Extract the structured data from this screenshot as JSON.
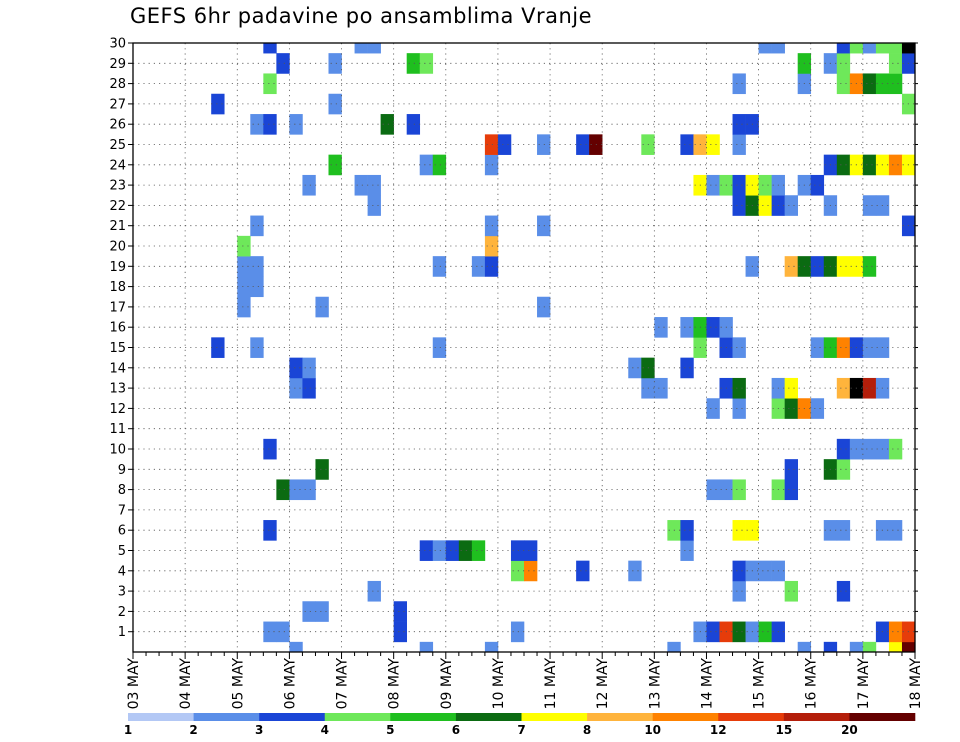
{
  "chart_data": {
    "type": "heatmap",
    "title": "GEFS 6hr padavine po ansamblima Vranje",
    "xlabel": "",
    "ylabel": "",
    "x_tick_labels": [
      "03 MAY",
      "04 MAY",
      "05 MAY",
      "06 MAY",
      "07 MAY",
      "08 MAY",
      "09 MAY",
      "10 MAY",
      "11 MAY",
      "12 MAY",
      "13 MAY",
      "14 MAY",
      "15 MAY",
      "16 MAY",
      "17 MAY",
      "18 MAY"
    ],
    "y_tick_labels": [
      "1",
      "2",
      "3",
      "4",
      "5",
      "6",
      "7",
      "8",
      "9",
      "10",
      "11",
      "12",
      "13",
      "14",
      "15",
      "16",
      "17",
      "18",
      "19",
      "20",
      "21",
      "22",
      "23",
      "24",
      "25",
      "26",
      "27",
      "28",
      "29",
      "30"
    ],
    "x_range_steps": [
      0,
      60
    ],
    "y_range_members": [
      0,
      30
    ],
    "grid": true,
    "colorbar": {
      "labels": [
        "1",
        "2",
        "3",
        "4",
        "5",
        "6",
        "7",
        "8",
        "10",
        "12",
        "15",
        "20"
      ],
      "colors": [
        "#b3c8f5",
        "#5a8ee8",
        "#1a45d6",
        "#6ee85a",
        "#1fbf1f",
        "#0b6b12",
        "#ffff00",
        "#ffb43c",
        "#ff8200",
        "#e63c0a",
        "#b41e0a",
        "#640000"
      ]
    },
    "cells": [
      [
        27,
        0,
        1
      ],
      [
        55,
        0,
        1
      ],
      [
        51,
        0,
        1
      ],
      [
        41,
        0,
        1
      ],
      [
        22,
        0,
        1
      ],
      [
        12,
        0,
        1
      ],
      [
        53,
        0,
        2
      ],
      [
        58,
        0,
        6
      ],
      [
        56,
        0,
        3
      ],
      [
        59,
        0,
        11
      ],
      [
        20,
        1,
        2
      ],
      [
        10,
        1,
        1
      ],
      [
        11,
        1,
        1
      ],
      [
        29,
        1,
        1
      ],
      [
        43,
        1,
        1
      ],
      [
        44,
        1,
        2
      ],
      [
        45,
        1,
        9
      ],
      [
        46,
        1,
        5
      ],
      [
        47,
        1,
        1
      ],
      [
        48,
        1,
        4
      ],
      [
        49,
        1,
        2
      ],
      [
        57,
        1,
        2
      ],
      [
        58,
        1,
        8
      ],
      [
        59,
        1,
        9
      ],
      [
        13,
        2,
        1
      ],
      [
        14,
        2,
        1
      ],
      [
        20,
        2,
        2
      ],
      [
        18,
        3,
        1
      ],
      [
        46,
        3,
        1
      ],
      [
        50,
        3,
        3
      ],
      [
        54,
        3,
        2
      ],
      [
        29,
        4,
        3
      ],
      [
        30,
        4,
        8
      ],
      [
        34,
        4,
        2
      ],
      [
        38,
        4,
        1
      ],
      [
        46,
        4,
        2
      ],
      [
        47,
        4,
        1
      ],
      [
        48,
        4,
        1
      ],
      [
        49,
        4,
        1
      ],
      [
        22,
        5,
        2
      ],
      [
        23,
        5,
        1
      ],
      [
        24,
        5,
        2
      ],
      [
        25,
        5,
        5
      ],
      [
        26,
        5,
        4
      ],
      [
        29,
        5,
        2
      ],
      [
        30,
        5,
        2
      ],
      [
        42,
        5,
        1
      ],
      [
        10,
        6,
        2
      ],
      [
        41,
        6,
        3
      ],
      [
        42,
        6,
        2
      ],
      [
        46,
        6,
        6
      ],
      [
        47,
        6,
        6
      ],
      [
        53,
        6,
        1
      ],
      [
        54,
        6,
        1
      ],
      [
        57,
        6,
        1
      ],
      [
        58,
        6,
        1
      ],
      [
        11,
        8,
        5
      ],
      [
        12,
        8,
        1
      ],
      [
        13,
        8,
        1
      ],
      [
        44,
        8,
        1
      ],
      [
        45,
        8,
        1
      ],
      [
        46,
        8,
        3
      ],
      [
        49,
        8,
        3
      ],
      [
        50,
        8,
        2
      ],
      [
        14,
        9,
        5
      ],
      [
        50,
        9,
        2
      ],
      [
        53,
        9,
        5
      ],
      [
        54,
        9,
        3
      ],
      [
        10,
        10,
        2
      ],
      [
        54,
        10,
        2
      ],
      [
        55,
        10,
        1
      ],
      [
        56,
        10,
        1
      ],
      [
        57,
        10,
        1
      ],
      [
        58,
        10,
        3
      ],
      [
        44,
        12,
        1
      ],
      [
        46,
        12,
        1
      ],
      [
        49,
        12,
        3
      ],
      [
        50,
        12,
        5
      ],
      [
        51,
        12,
        8
      ],
      [
        52,
        12,
        1
      ],
      [
        12,
        13,
        1
      ],
      [
        13,
        13,
        2
      ],
      [
        39,
        13,
        1
      ],
      [
        40,
        13,
        1
      ],
      [
        45,
        13,
        2
      ],
      [
        46,
        13,
        5
      ],
      [
        49,
        13,
        1
      ],
      [
        50,
        13,
        6
      ],
      [
        54,
        13,
        7
      ],
      [
        55,
        13,
        12
      ],
      [
        56,
        13,
        10
      ],
      [
        57,
        13,
        1
      ],
      [
        12,
        14,
        2
      ],
      [
        13,
        14,
        1
      ],
      [
        38,
        14,
        1
      ],
      [
        39,
        14,
        5
      ],
      [
        42,
        14,
        2
      ],
      [
        6,
        15,
        2
      ],
      [
        9,
        15,
        1
      ],
      [
        23,
        15,
        1
      ],
      [
        43,
        15,
        3
      ],
      [
        45,
        15,
        2
      ],
      [
        46,
        15,
        1
      ],
      [
        52,
        15,
        1
      ],
      [
        53,
        15,
        4
      ],
      [
        54,
        15,
        8
      ],
      [
        55,
        15,
        2
      ],
      [
        56,
        15,
        1
      ],
      [
        57,
        15,
        1
      ],
      [
        40,
        16,
        1
      ],
      [
        42,
        16,
        1
      ],
      [
        43,
        16,
        4
      ],
      [
        44,
        16,
        2
      ],
      [
        45,
        16,
        1
      ],
      [
        8,
        17,
        1
      ],
      [
        14,
        17,
        1
      ],
      [
        31,
        17,
        1
      ],
      [
        8,
        18,
        1
      ],
      [
        9,
        18,
        1
      ],
      [
        8,
        19,
        1
      ],
      [
        9,
        19,
        1
      ],
      [
        23,
        19,
        1
      ],
      [
        26,
        19,
        1
      ],
      [
        27,
        19,
        2
      ],
      [
        47,
        19,
        1
      ],
      [
        50,
        19,
        7
      ],
      [
        51,
        19,
        5
      ],
      [
        52,
        19,
        2
      ],
      [
        53,
        19,
        5
      ],
      [
        54,
        19,
        6
      ],
      [
        55,
        19,
        6
      ],
      [
        56,
        19,
        4
      ],
      [
        8,
        20,
        3
      ],
      [
        27,
        20,
        7
      ],
      [
        9,
        21,
        1
      ],
      [
        27,
        21,
        1
      ],
      [
        31,
        21,
        1
      ],
      [
        59,
        21,
        2
      ],
      [
        18,
        22,
        1
      ],
      [
        46,
        22,
        2
      ],
      [
        47,
        22,
        5
      ],
      [
        48,
        22,
        6
      ],
      [
        49,
        22,
        2
      ],
      [
        50,
        22,
        1
      ],
      [
        53,
        22,
        1
      ],
      [
        56,
        22,
        1
      ],
      [
        57,
        22,
        1
      ],
      [
        13,
        23,
        1
      ],
      [
        17,
        23,
        1
      ],
      [
        18,
        23,
        1
      ],
      [
        43,
        23,
        6
      ],
      [
        44,
        23,
        1
      ],
      [
        45,
        23,
        3
      ],
      [
        46,
        23,
        2
      ],
      [
        47,
        23,
        6
      ],
      [
        48,
        23,
        3
      ],
      [
        49,
        23,
        1
      ],
      [
        51,
        23,
        1
      ],
      [
        52,
        23,
        2
      ],
      [
        15,
        24,
        4
      ],
      [
        22,
        24,
        1
      ],
      [
        23,
        24,
        4
      ],
      [
        27,
        24,
        1
      ],
      [
        53,
        24,
        2
      ],
      [
        54,
        24,
        5
      ],
      [
        55,
        24,
        6
      ],
      [
        56,
        24,
        5
      ],
      [
        57,
        24,
        6
      ],
      [
        58,
        24,
        8
      ],
      [
        59,
        24,
        6
      ],
      [
        27,
        25,
        9
      ],
      [
        28,
        25,
        2
      ],
      [
        31,
        25,
        1
      ],
      [
        34,
        25,
        2
      ],
      [
        35,
        25,
        11
      ],
      [
        39,
        25,
        3
      ],
      [
        42,
        25,
        2
      ],
      [
        43,
        25,
        7
      ],
      [
        44,
        25,
        6
      ],
      [
        46,
        25,
        1
      ],
      [
        9,
        26,
        1
      ],
      [
        10,
        26,
        2
      ],
      [
        12,
        26,
        1
      ],
      [
        19,
        26,
        5
      ],
      [
        21,
        26,
        2
      ],
      [
        46,
        26,
        2
      ],
      [
        47,
        26,
        2
      ],
      [
        6,
        27,
        2
      ],
      [
        15,
        27,
        1
      ],
      [
        59,
        27,
        3
      ],
      [
        10,
        28,
        3
      ],
      [
        46,
        28,
        1
      ],
      [
        51,
        28,
        1
      ],
      [
        54,
        28,
        3
      ],
      [
        55,
        28,
        8
      ],
      [
        56,
        28,
        5
      ],
      [
        57,
        28,
        4
      ],
      [
        58,
        28,
        4
      ],
      [
        11,
        29,
        2
      ],
      [
        15,
        29,
        1
      ],
      [
        21,
        29,
        4
      ],
      [
        22,
        29,
        3
      ],
      [
        51,
        29,
        4
      ],
      [
        53,
        29,
        1
      ],
      [
        54,
        29,
        3
      ],
      [
        58,
        29,
        3
      ],
      [
        59,
        29,
        2
      ],
      [
        10,
        30,
        2
      ],
      [
        17,
        30,
        1
      ],
      [
        18,
        30,
        1
      ],
      [
        48,
        30,
        1
      ],
      [
        49,
        30,
        1
      ],
      [
        54,
        30,
        2
      ],
      [
        55,
        30,
        3
      ],
      [
        56,
        30,
        1
      ],
      [
        57,
        30,
        3
      ],
      [
        58,
        30,
        3
      ],
      [
        59,
        30,
        12
      ]
    ]
  }
}
